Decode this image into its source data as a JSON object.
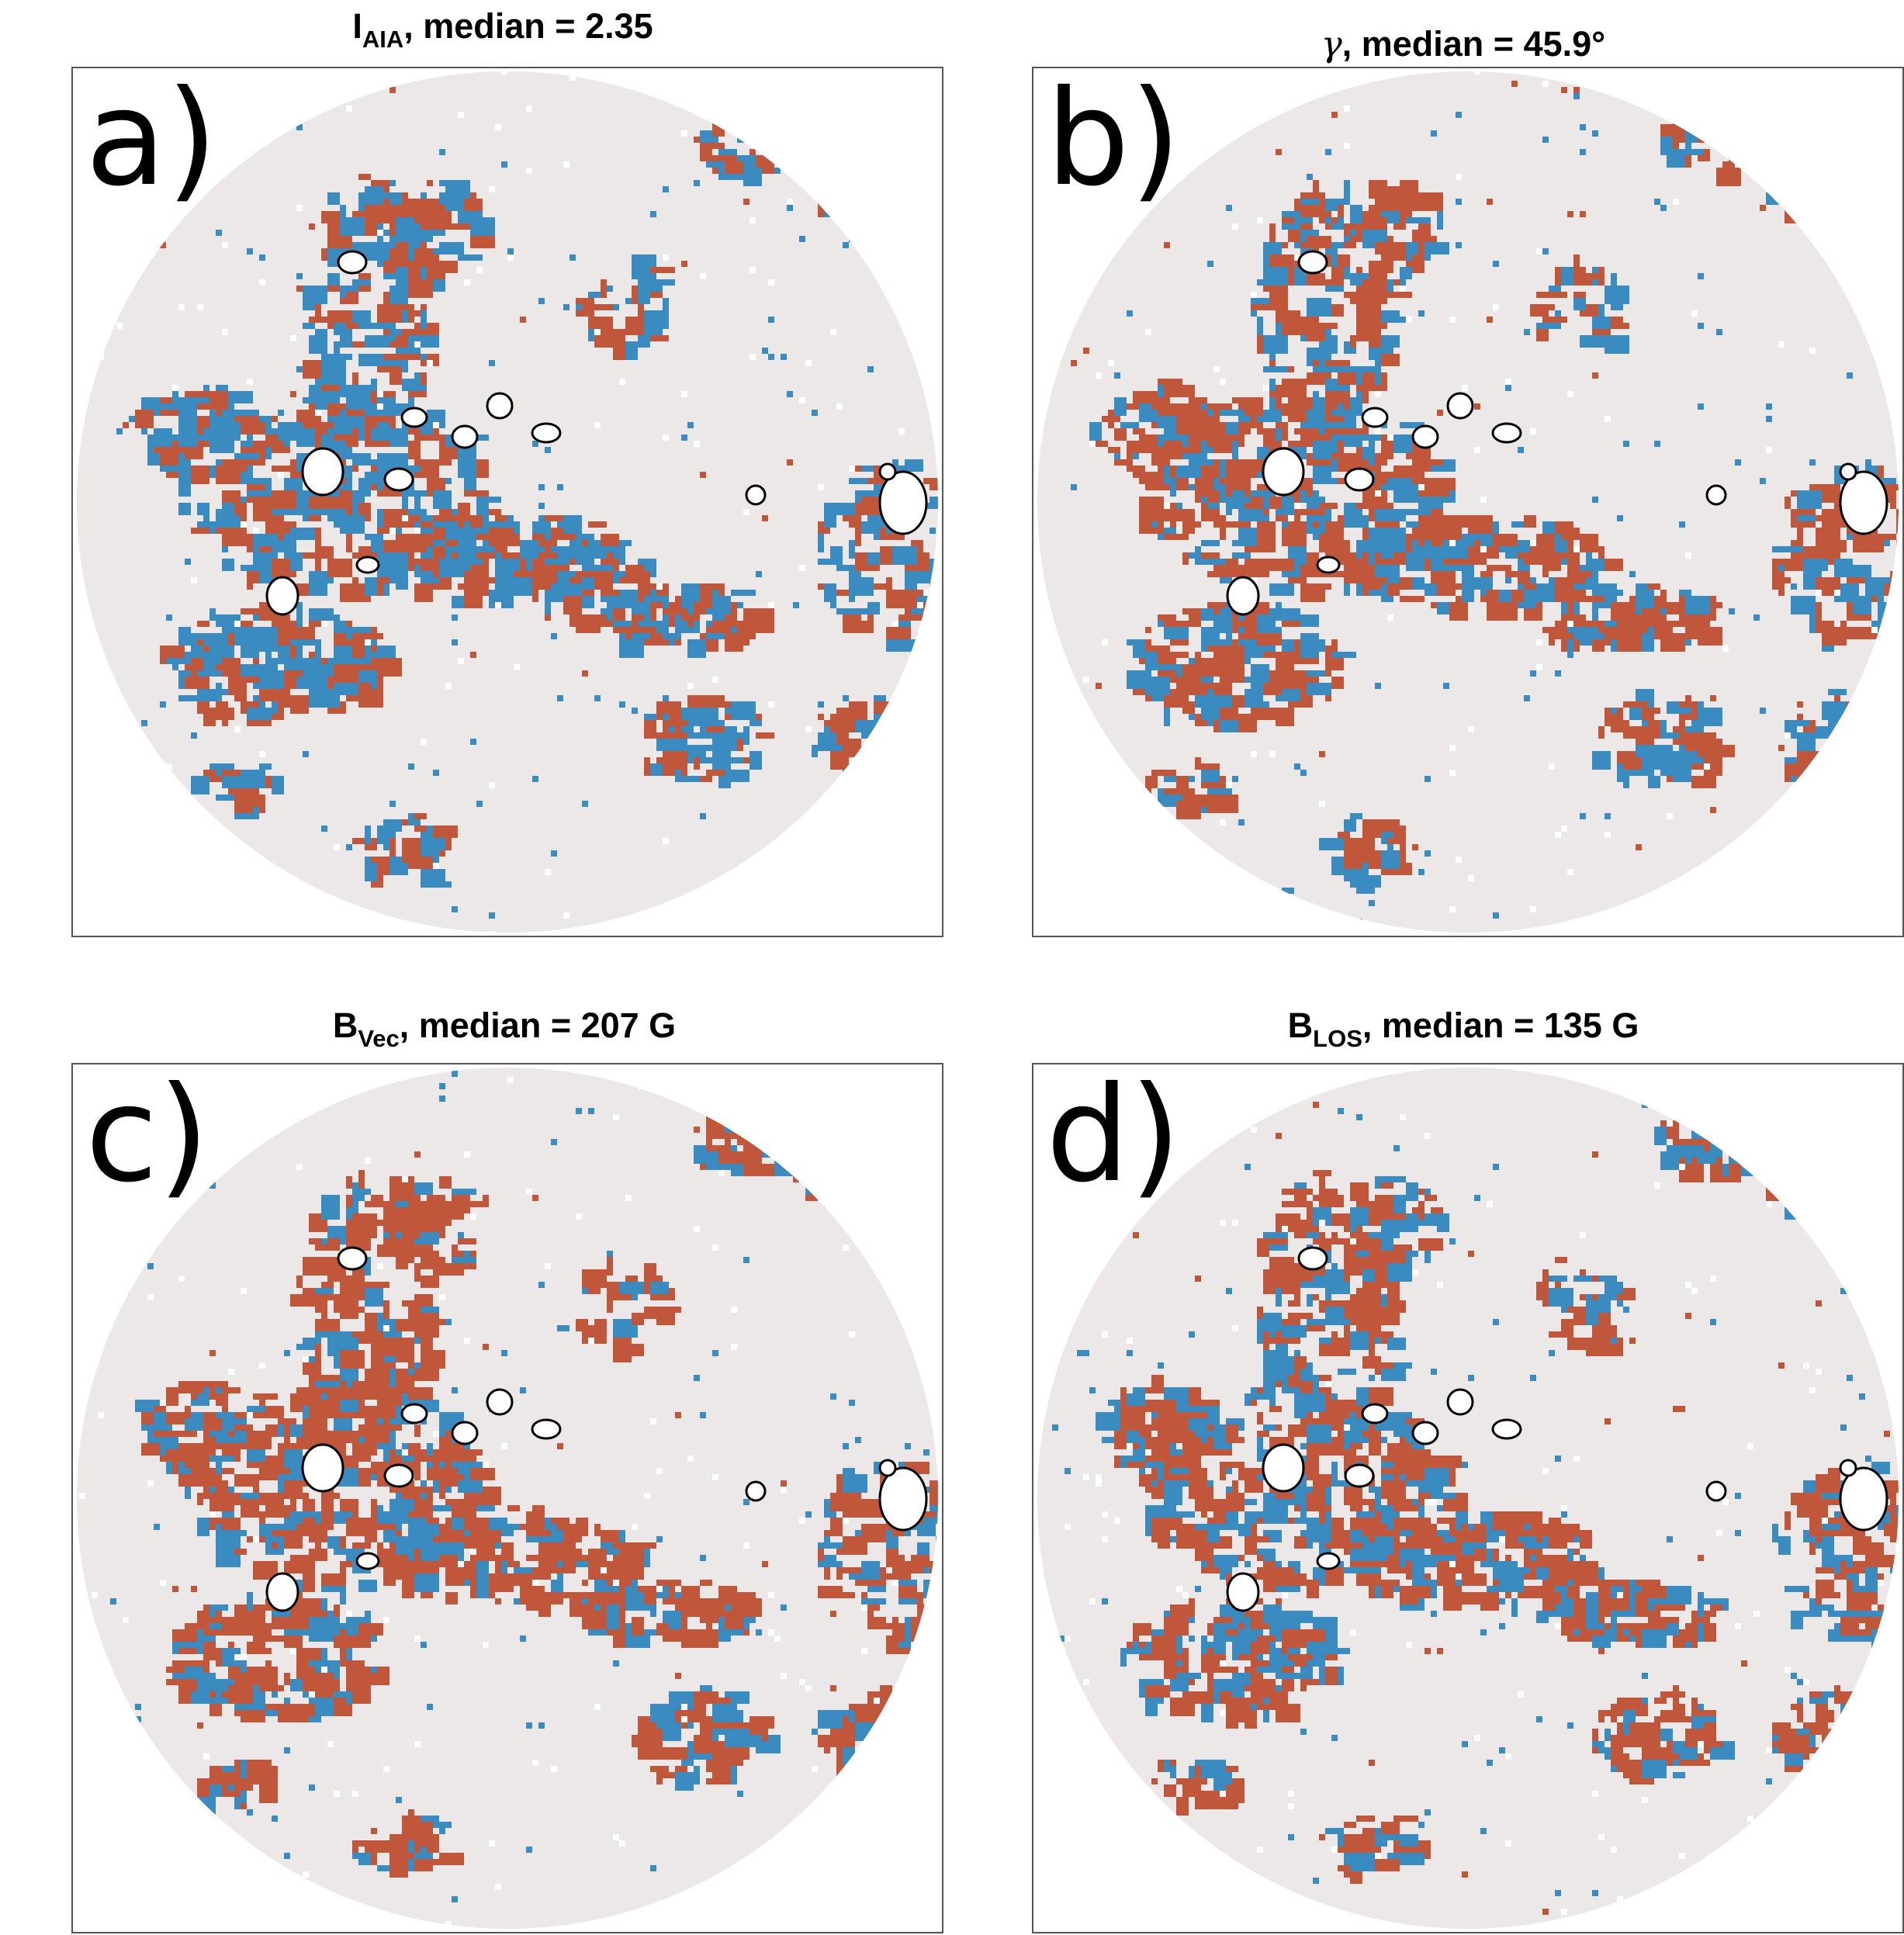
{
  "colors": {
    "disk": "#ece8e8",
    "blue": "#3a8bbf",
    "orange": "#c0573b",
    "outline": "#000000",
    "hole": "#ffffff"
  },
  "panels": [
    {
      "label": "a)",
      "title_main": "I",
      "title_sub": "AIA",
      "title_rest": ", median = 2.35",
      "blue_weight": 0.55
    },
    {
      "label": "b)",
      "title_main": "γ",
      "title_sub": "",
      "title_rest": ", median = 45.9°",
      "blue_weight": 0.4
    },
    {
      "label": "c)",
      "title_main": "B",
      "title_sub": "Vec",
      "title_rest": ", median = 207 G",
      "blue_weight": 0.3
    },
    {
      "label": "d)",
      "title_main": "B",
      "title_sub": "LOS",
      "title_rest": ", median = 135 G",
      "blue_weight": 0.4
    }
  ]
}
